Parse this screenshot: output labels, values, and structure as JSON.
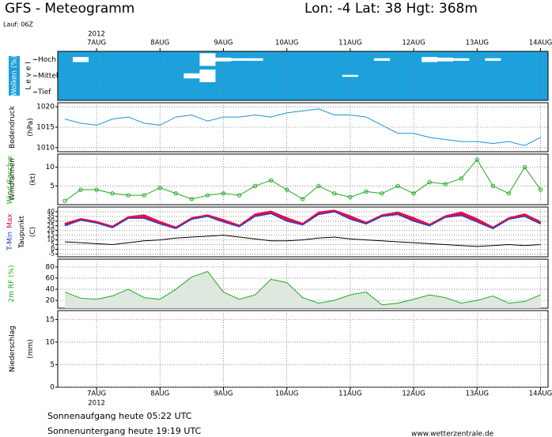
{
  "page": {
    "title": "GFS - Meteogramm",
    "location": "Lon: -4 Lat: 38 Hgt: 368m",
    "run": "Lauf: 06Z",
    "sunrise": "Sonnenaufgang heute 05:22 UTC",
    "sunset": "Sonnenuntergang heute 19:19 UTC",
    "source": "www.wetterzentrale.de"
  },
  "chart_data": [
    {
      "type": "cloud",
      "ylabel": "Wolken (%)",
      "level_label": "L e v e l",
      "year": "2012",
      "categories": [
        null,
        null,
        "7AUG",
        null,
        null,
        null,
        "8AUG",
        null,
        null,
        null,
        "9AUG",
        null,
        null,
        null,
        "10AUG",
        null,
        null,
        null,
        "11AUG",
        null,
        null,
        null,
        "12AUG",
        null,
        null,
        null,
        "13AUG",
        null,
        null,
        null,
        "14AUG"
      ],
      "ylim": [
        0,
        100
      ],
      "series": [
        {
          "name": "Hoch",
          "color": "#ffffff",
          "values": [
            0,
            40,
            0,
            0,
            0,
            0,
            0,
            0,
            0,
            100,
            30,
            20,
            20,
            0,
            0,
            0,
            0,
            0,
            0,
            0,
            20,
            0,
            0,
            40,
            30,
            20,
            0,
            20,
            0,
            0,
            0
          ]
        },
        {
          "name": "Mittel",
          "color": "#ffffff",
          "values": [
            0,
            0,
            0,
            0,
            0,
            0,
            0,
            0,
            40,
            100,
            0,
            0,
            0,
            0,
            0,
            0,
            0,
            0,
            15,
            0,
            0,
            0,
            0,
            0,
            0,
            0,
            0,
            0,
            0,
            0,
            0
          ]
        },
        {
          "name": "Tief",
          "color": "#ffffff",
          "values": [
            0,
            0,
            0,
            0,
            0,
            0,
            0,
            0,
            0,
            0,
            0,
            0,
            0,
            0,
            0,
            0,
            0,
            0,
            0,
            0,
            0,
            0,
            0,
            0,
            0,
            0,
            0,
            0,
            0,
            0,
            0
          ]
        }
      ]
    },
    {
      "type": "line",
      "ylabel": "Bodendruck",
      "unit": "(hPa)",
      "ylim": [
        1009,
        1021
      ],
      "yticks": [
        1010,
        1015,
        1020
      ],
      "grid": true,
      "series": [
        {
          "color": "#1e90d8",
          "values": [
            1017,
            1016,
            1015.5,
            1017,
            1017.5,
            1016,
            1015.5,
            1017.5,
            1018,
            1016.5,
            1017.5,
            1017.5,
            1018,
            1017.5,
            1018.5,
            1019,
            1019.5,
            1018,
            1018,
            1017.5,
            1015.5,
            1013.5,
            1013.5,
            1012.5,
            1012,
            1011.5,
            1011.5,
            1011,
            1011.5,
            1010.5,
            1012.5
          ]
        }
      ]
    },
    {
      "type": "line",
      "ylabel": "Windfahnen",
      "unit": "(kt)",
      "ylim": [
        0,
        13.5
      ],
      "yticks": [
        5,
        10
      ],
      "grid": true,
      "markers": true,
      "series": [
        {
          "name": "Wind Geschw.",
          "color": "#22aa22",
          "values": [
            1,
            4,
            4,
            3,
            2.5,
            2.5,
            4.5,
            3,
            1.5,
            2.5,
            3,
            2.5,
            5,
            6.5,
            4,
            1.5,
            5,
            3,
            2,
            3.5,
            3,
            5,
            3,
            6,
            5.5,
            7,
            12,
            5,
            3,
            10,
            4
          ]
        }
      ]
    },
    {
      "type": "band",
      "unit": "(C)",
      "ylim": [
        -8,
        45
      ],
      "yticks": [
        -5,
        0,
        5,
        10,
        15,
        20,
        25,
        30,
        35,
        40
      ],
      "grid": true,
      "series": [
        {
          "name": "T-Min",
          "color": "#2040c8",
          "values": [
            25,
            31,
            28,
            23,
            33,
            33,
            27,
            22,
            32,
            35,
            29,
            24,
            35,
            38,
            30,
            26,
            37,
            40,
            32,
            27,
            35,
            37,
            30,
            25,
            34,
            36,
            29,
            22,
            32,
            35,
            27
          ]
        },
        {
          "name": "Max",
          "color": "#e0104a",
          "values": [
            28,
            33,
            30,
            25,
            35,
            37,
            30,
            24,
            34,
            37,
            32,
            26,
            38,
            41,
            34,
            28,
            40,
            42,
            36,
            29,
            37,
            40,
            34,
            27,
            36,
            40,
            33,
            24,
            34,
            38,
            30
          ]
        },
        {
          "name": "Taupunkt",
          "color": "#000000",
          "values": [
            8,
            7,
            6,
            5,
            7,
            9,
            10,
            12,
            13,
            14,
            15,
            13,
            11,
            9,
            9,
            10,
            12,
            13,
            11,
            10,
            9,
            8,
            7,
            6,
            5,
            4,
            3,
            4,
            5,
            4,
            5
          ]
        }
      ]
    },
    {
      "type": "area",
      "ylim": [
        6,
        94
      ],
      "yticks": [
        20,
        40,
        60,
        80
      ],
      "grid": true,
      "series": [
        {
          "name": "2m RF (%)",
          "color": "#22aa22",
          "values": [
            35,
            24,
            22,
            28,
            40,
            25,
            22,
            40,
            62,
            72,
            35,
            22,
            30,
            58,
            52,
            25,
            15,
            20,
            30,
            35,
            12,
            15,
            22,
            30,
            25,
            15,
            20,
            28,
            15,
            18,
            30
          ]
        }
      ]
    },
    {
      "type": "bar",
      "ylabel": "Niederschlag",
      "unit": "(mm)",
      "year": "2012",
      "ylim": [
        0,
        17
      ],
      "yticks": [
        0,
        5,
        10,
        15
      ],
      "grid": true,
      "categories": [
        null,
        null,
        "7AUG",
        null,
        null,
        null,
        "8AUG",
        null,
        null,
        null,
        "9AUG",
        null,
        null,
        null,
        "10AUG",
        null,
        null,
        null,
        "11AUG",
        null,
        null,
        null,
        "12AUG",
        null,
        null,
        null,
        "13AUG",
        null,
        null,
        null,
        "14AUG"
      ],
      "series": [
        {
          "color": "#1e60d8",
          "values": [
            0,
            0,
            0,
            0,
            0,
            0,
            0,
            0,
            0,
            0,
            0,
            0,
            0,
            0,
            0,
            0,
            0,
            0,
            0,
            0,
            0,
            0,
            0,
            0,
            0,
            0,
            0,
            0,
            0,
            0,
            0
          ]
        }
      ]
    }
  ]
}
